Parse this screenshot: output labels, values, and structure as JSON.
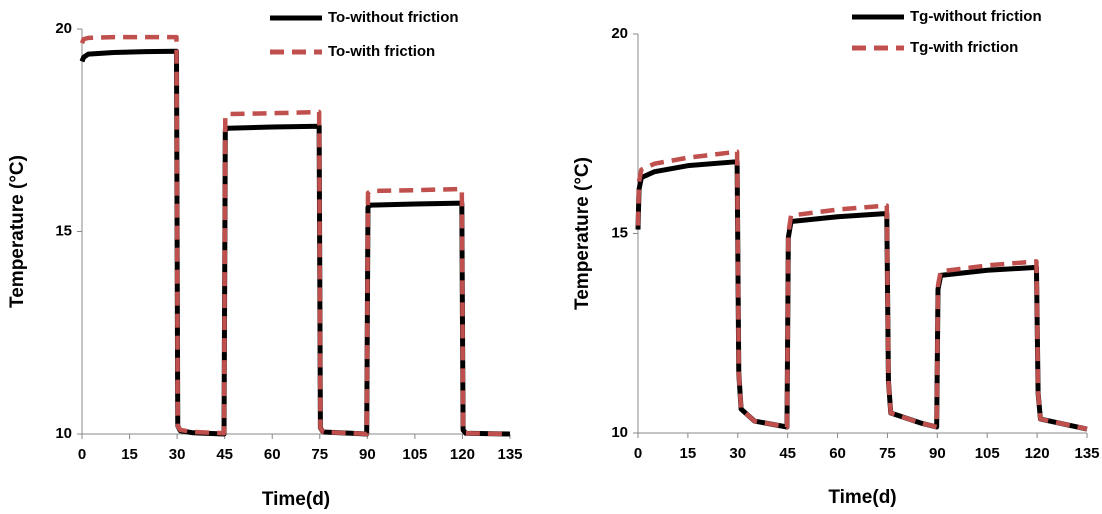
{
  "chart_data": [
    {
      "type": "line",
      "x_label": "Time(d)",
      "y_label": "Temperature (°C)",
      "x": [
        0,
        0.5,
        2,
        10,
        20,
        29.8,
        30.2,
        31,
        35,
        44.8,
        45.2,
        46,
        60,
        74.8,
        75.2,
        76,
        85,
        89.8,
        90.2,
        91,
        105,
        119.8,
        120.2,
        121,
        135
      ],
      "series": [
        {
          "name": "To-without friction",
          "color": "#000000",
          "line_style": "solid",
          "values": [
            19.2,
            19.3,
            19.38,
            19.42,
            19.44,
            19.45,
            10.2,
            10.08,
            10.03,
            10.0,
            17.5,
            17.55,
            17.58,
            17.6,
            10.15,
            10.05,
            10.02,
            10.0,
            15.6,
            15.65,
            15.68,
            15.7,
            10.1,
            10.02,
            10.0
          ]
        },
        {
          "name": "To-with friction",
          "color": "#c0504d",
          "line_style": "dashed",
          "values": [
            19.65,
            19.75,
            19.78,
            19.8,
            19.8,
            19.8,
            10.2,
            10.1,
            10.05,
            10.02,
            17.85,
            17.9,
            17.92,
            17.95,
            10.15,
            10.05,
            10.02,
            10.0,
            15.95,
            16.0,
            16.02,
            16.05,
            10.1,
            10.02,
            10.0
          ]
        }
      ],
      "xlim": [
        0,
        135
      ],
      "xticks": [
        0,
        15,
        30,
        45,
        60,
        75,
        90,
        105,
        120,
        135
      ],
      "ylim": [
        10,
        20
      ],
      "yticks": [
        10,
        15,
        20
      ],
      "grid": false,
      "legend": "top-right"
    },
    {
      "type": "line",
      "x_label": "Time(d)",
      "y_label": "Temperature (°C)",
      "x": [
        0,
        0.3,
        1,
        5,
        15,
        29.8,
        30.3,
        31,
        35,
        44.8,
        45.2,
        46,
        60,
        74.8,
        75.3,
        76,
        85,
        89.8,
        90.2,
        91,
        105,
        119.8,
        120.3,
        121,
        135
      ],
      "series": [
        {
          "name": "Tg-without friction",
          "color": "#000000",
          "line_style": "solid",
          "values": [
            15.1,
            16.1,
            16.4,
            16.55,
            16.7,
            16.8,
            11.5,
            10.6,
            10.3,
            10.15,
            14.9,
            15.3,
            15.42,
            15.5,
            11.3,
            10.5,
            10.25,
            10.15,
            13.6,
            13.95,
            14.08,
            14.15,
            11.0,
            10.35,
            10.1
          ]
        },
        {
          "name": "Tg-with friction",
          "color": "#c0504d",
          "line_style": "dashed",
          "values": [
            15.2,
            16.3,
            16.6,
            16.75,
            16.9,
            17.05,
            11.5,
            10.6,
            10.3,
            10.15,
            15.0,
            15.45,
            15.6,
            15.7,
            11.3,
            10.5,
            10.25,
            10.15,
            13.7,
            14.05,
            14.2,
            14.3,
            11.0,
            10.35,
            10.1
          ]
        }
      ],
      "xlim": [
        0,
        135
      ],
      "xticks": [
        0,
        15,
        30,
        45,
        60,
        75,
        90,
        105,
        120,
        135
      ],
      "ylim": [
        10,
        20
      ],
      "yticks": [
        10,
        15,
        20
      ],
      "grid": false,
      "legend": "top-right"
    }
  ]
}
